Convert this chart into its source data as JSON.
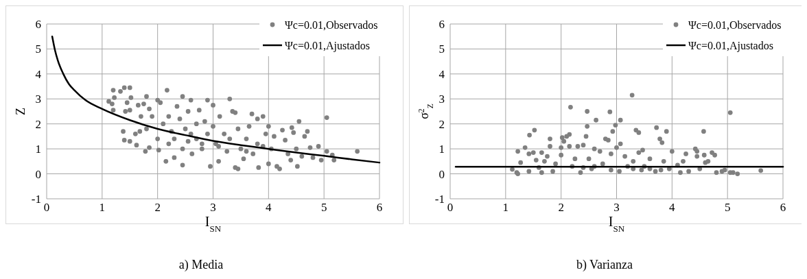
{
  "chart_data": [
    {
      "type": "scatter",
      "xlabel": "I$_{SN}$",
      "ylabel": "Z",
      "xlim": [
        0,
        6
      ],
      "ylim": [
        -1,
        6
      ],
      "xticks": [
        0,
        1,
        2,
        3,
        4,
        5,
        6
      ],
      "yticks": [
        -1,
        0,
        1,
        2,
        3,
        4,
        5,
        6
      ],
      "grid": true,
      "legend": "top right",
      "annotations": [
        "a) Media"
      ],
      "series": [
        {
          "name": "Ψc=0.01,Observados",
          "marker": "circle",
          "color": "#808080",
          "x": [
            1.12,
            1.2,
            1.22,
            1.2,
            1.18,
            1.4,
            1.5,
            1.33,
            1.45,
            1.52,
            1.42,
            1.5,
            1.38,
            1.4,
            1.5,
            1.62,
            1.6,
            1.68,
            1.65,
            1.8,
            1.75,
            1.7,
            1.85,
            1.8,
            1.78,
            1.85,
            1.9,
            2.0,
            2.05,
            2.0,
            2.02,
            2.1,
            2.15,
            2.17,
            2.2,
            2.2,
            2.25,
            2.3,
            2.35,
            2.4,
            2.45,
            2.45,
            2.45,
            2.5,
            2.55,
            2.55,
            2.6,
            2.62,
            2.7,
            2.7,
            2.75,
            2.8,
            2.85,
            2.9,
            2.9,
            2.95,
            3.0,
            3.0,
            3.05,
            3.1,
            3.12,
            3.2,
            3.25,
            3.3,
            3.3,
            3.35,
            3.4,
            3.4,
            3.45,
            3.45,
            3.5,
            3.55,
            3.6,
            3.65,
            3.7,
            3.72,
            3.8,
            3.8,
            3.82,
            3.9,
            3.95,
            4.0,
            4.0,
            4.05,
            4.1,
            4.15,
            4.2,
            4.25,
            4.3,
            4.35,
            4.4,
            4.42,
            4.45,
            4.5,
            4.52,
            4.55,
            4.6,
            4.65,
            4.7,
            4.75,
            4.8,
            4.9,
            4.95,
            5.05,
            5.05,
            5.15,
            5.18,
            5.6,
            2.6,
            2.3,
            2.8,
            3.1,
            3.6,
            3.9
          ],
          "values": [
            2.9,
            3.35,
            3.05,
            2.55,
            2.8,
            3.45,
            3.45,
            3.3,
            2.85,
            3.05,
            2.5,
            2.55,
            1.7,
            1.35,
            1.3,
            1.15,
            1.6,
            1.7,
            2.75,
            3.1,
            2.8,
            2.3,
            2.6,
            1.8,
            0.9,
            1.05,
            2.3,
            2.95,
            2.85,
            1.4,
            0.95,
            2.0,
            0.5,
            3.35,
            2.3,
            1.2,
            1.7,
            0.65,
            2.7,
            2.2,
            3.1,
            1.0,
            0.35,
            1.8,
            2.5,
            1.3,
            2.95,
            0.8,
            2.0,
            1.4,
            2.55,
            1.0,
            2.1,
            2.95,
            1.6,
            0.3,
            2.75,
            1.9,
            1.2,
            0.5,
            2.3,
            1.6,
            0.9,
            3.0,
            1.4,
            2.5,
            2.45,
            0.25,
            0.2,
            1.8,
            1.0,
            0.6,
            1.4,
            1.9,
            2.4,
            0.8,
            2.2,
            1.2,
            0.25,
            2.3,
            1.6,
            1.9,
            0.4,
            1.0,
            1.5,
            0.3,
            0.2,
            1.75,
            1.35,
            0.8,
            0.55,
            1.85,
            1.65,
            1.0,
            0.3,
            2.1,
            0.7,
            1.5,
            1.7,
            1.05,
            0.65,
            1.1,
            0.55,
            2.25,
            0.9,
            0.75,
            0.55,
            0.9,
            1.6,
            1.4,
            1.2,
            1.1,
            0.9,
            1.1
          ]
        },
        {
          "name": "Ψc=0.01,Ajustados",
          "type": "line",
          "line_style": "solid",
          "color": "#000000",
          "x": [
            0.1,
            0.15,
            0.2,
            0.3,
            0.4,
            0.5,
            0.7,
            1,
            1.5,
            2,
            2.5,
            3,
            3.5,
            4,
            4.5,
            5,
            5.5,
            6
          ],
          "values": [
            5.5,
            4.95,
            4.55,
            4.0,
            3.6,
            3.35,
            2.95,
            2.6,
            2.15,
            1.8,
            1.55,
            1.32,
            1.15,
            1.0,
            0.85,
            0.72,
            0.58,
            0.45
          ]
        }
      ]
    },
    {
      "type": "scatter",
      "xlabel": "I$_{SN}$",
      "ylabel": "σ$^{2}$$_{Z}$",
      "xlim": [
        0,
        6
      ],
      "ylim": [
        -1,
        6
      ],
      "xticks": [
        0,
        1,
        2,
        3,
        4,
        5,
        6
      ],
      "yticks": [
        -1,
        0,
        1,
        2,
        3,
        4,
        5,
        6
      ],
      "grid": true,
      "legend": "top right",
      "annotations": [
        "b) Varianza"
      ],
      "series": [
        {
          "name": "Ψc=0.01,Observados",
          "marker": "circle",
          "color": "#808080",
          "x": [
            1.12,
            1.2,
            1.22,
            1.22,
            1.27,
            1.35,
            1.43,
            1.42,
            1.42,
            1.52,
            1.5,
            1.55,
            1.6,
            1.65,
            1.65,
            1.7,
            1.75,
            1.8,
            1.8,
            1.85,
            1.9,
            2.0,
            2.0,
            2.02,
            2.05,
            2.1,
            2.15,
            2.15,
            2.17,
            2.2,
            2.25,
            2.3,
            2.35,
            2.4,
            2.45,
            2.47,
            2.47,
            2.5,
            2.55,
            2.6,
            2.63,
            2.7,
            2.75,
            2.8,
            2.85,
            2.88,
            2.9,
            2.93,
            2.98,
            3.0,
            3.05,
            3.07,
            3.07,
            3.15,
            3.2,
            3.28,
            3.3,
            3.35,
            3.4,
            3.4,
            3.45,
            3.47,
            3.5,
            3.6,
            3.7,
            3.72,
            3.78,
            3.82,
            3.85,
            3.9,
            3.95,
            4.0,
            4.1,
            4.15,
            4.2,
            4.25,
            4.3,
            4.42,
            4.45,
            4.45,
            4.5,
            4.57,
            4.58,
            4.6,
            4.65,
            4.72,
            4.77,
            4.8,
            4.9,
            4.95,
            5.05,
            5.05,
            5.1,
            5.18,
            5.6,
            2.6,
            2.9,
            3.3,
            3.8,
            2.4,
            3.6
          ],
          "values": [
            0.18,
            0.05,
            0.0,
            0.9,
            0.45,
            1.05,
            1.55,
            0.8,
            0.1,
            1.75,
            0.85,
            0.55,
            0.25,
            0.05,
            0.85,
            0.5,
            0.7,
            1.4,
            1.1,
            0.1,
            0.4,
            1.05,
            0.75,
            1.45,
            1.3,
            1.5,
            1.58,
            1.1,
            2.67,
            0.3,
            0.6,
            1.1,
            0.05,
            1.15,
            1.5,
            2.5,
            1.9,
            0.6,
            0.2,
            1.0,
            2.15,
            0.9,
            0.4,
            1.4,
            1.35,
            2.48,
            0.8,
            1.7,
            1.95,
            1.05,
            0.1,
            2.15,
            1.2,
            0.7,
            0.3,
            3.15,
            0.5,
            1.75,
            1.65,
            0.85,
            0.15,
            0.95,
            0.3,
            0.6,
            0.1,
            1.85,
            1.4,
            1.25,
            0.5,
            1.7,
            0.2,
            0.9,
            0.35,
            0.05,
            0.5,
            0.8,
            0.1,
            1.0,
            0.9,
            0.7,
            0.2,
            1.7,
            0.75,
            0.45,
            0.5,
            0.85,
            0.75,
            0.05,
            0.1,
            0.15,
            2.45,
            0.05,
            0.05,
            0.0,
            0.13,
            0.3,
            0.15,
            0.2,
            0.15,
            0.25,
            0.2
          ]
        },
        {
          "name": "Ψc=0.01,Ajustados",
          "type": "line",
          "line_style": "solid",
          "color": "#000000",
          "x": [
            0.1,
            6
          ],
          "values": [
            0.28,
            0.28
          ]
        }
      ]
    }
  ]
}
